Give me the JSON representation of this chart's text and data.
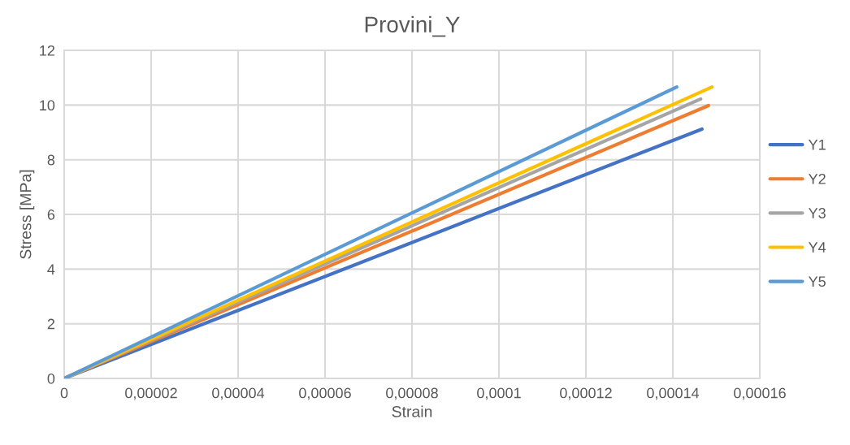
{
  "chart_data": {
    "type": "line",
    "title": "Provini_Y",
    "xlabel": "Strain",
    "ylabel": "Stress [MPa]",
    "xlim": [
      0,
      0.00016
    ],
    "xticks": [
      0,
      {
        "value": 2e-05,
        "label": "0,00002"
      },
      {
        "value": 4e-05,
        "label": "0,00004"
      },
      {
        "value": 6e-05,
        "label": "0,00006"
      },
      {
        "value": 8e-05,
        "label": "0,00008"
      },
      {
        "value": 0.0001,
        "label": "0,0001"
      },
      {
        "value": 0.00012,
        "label": "0,00012"
      },
      {
        "value": 0.00014,
        "label": "0,00014"
      },
      {
        "value": 0.00016,
        "label": "0,00016"
      }
    ],
    "ylim": [
      0,
      12
    ],
    "yticks": [
      0,
      2,
      4,
      6,
      8,
      10,
      12
    ],
    "grid": true,
    "legend": "right",
    "marker": "none",
    "line_style": "solid",
    "series": [
      {
        "name": "Y1",
        "color": "#4472c4",
        "x": [
          0,
          0.0001467
        ],
        "values": [
          0,
          9.12
        ]
      },
      {
        "name": "Y2",
        "color": "#ed7d31",
        "x": [
          0,
          0.0001482
        ],
        "values": [
          0,
          9.98
        ]
      },
      {
        "name": "Y3",
        "color": "#a5a5a5",
        "x": [
          0,
          0.0001464
        ],
        "values": [
          0,
          10.22
        ]
      },
      {
        "name": "Y4",
        "color": "#ffc000",
        "x": [
          0,
          0.000149
        ],
        "values": [
          0,
          10.66
        ]
      },
      {
        "name": "Y5",
        "color": "#5b9bd5",
        "x": [
          0,
          0.0001409
        ],
        "values": [
          0,
          10.66
        ]
      }
    ]
  }
}
